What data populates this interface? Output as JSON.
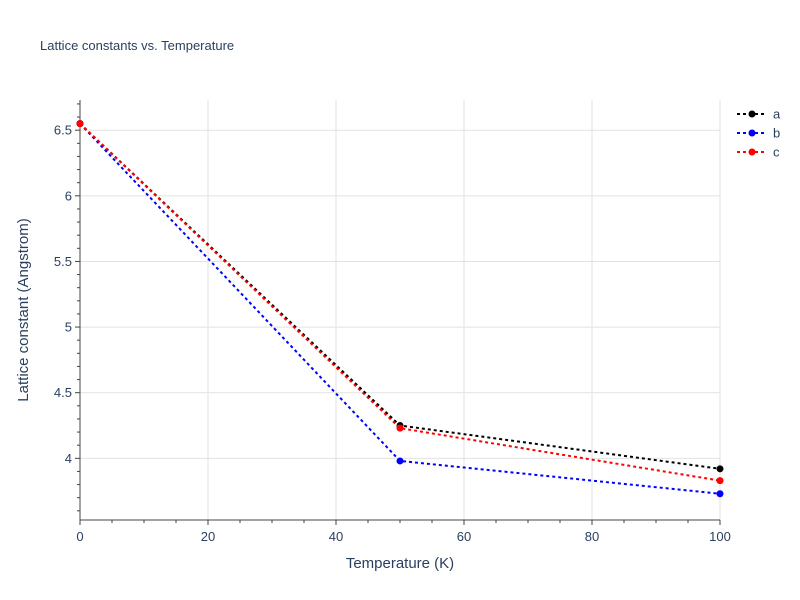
{
  "chart_data": {
    "type": "line",
    "title": "Lattice constants vs. Temperature",
    "xlabel": "Temperature (K)",
    "ylabel": "Lattice constant (Angstrom)",
    "xlim": [
      0,
      100
    ],
    "ylim": [
      3.53,
      6.73
    ],
    "x_ticks": [
      0,
      20,
      40,
      60,
      80,
      100
    ],
    "x_tick_labels": [
      "0",
      "20",
      "40",
      "60",
      "80",
      "100"
    ],
    "x_minor_ticks": [
      5,
      10,
      15,
      25,
      30,
      35,
      45,
      50,
      55,
      65,
      70,
      75,
      85,
      90,
      95
    ],
    "y_ticks": [
      4,
      4.5,
      5,
      5.5,
      6,
      6.5
    ],
    "y_tick_labels": [
      "4",
      "4.5",
      "5",
      "5.5",
      "6",
      "6.5"
    ],
    "y_minor_ticks": [
      3.6,
      3.7,
      3.8,
      3.9,
      4.1,
      4.2,
      4.3,
      4.4,
      4.6,
      4.7,
      4.8,
      4.9,
      5.1,
      5.2,
      5.3,
      5.4,
      5.6,
      5.7,
      5.8,
      5.9,
      6.1,
      6.2,
      6.3,
      6.4,
      6.6,
      6.7
    ],
    "grid": true,
    "legend_position": "top-right",
    "x": [
      0,
      50,
      100
    ],
    "series": [
      {
        "name": "a",
        "color": "#000000",
        "values": [
          6.55,
          4.25,
          3.92
        ]
      },
      {
        "name": "b",
        "color": "#0000ff",
        "values": [
          6.55,
          3.98,
          3.73
        ]
      },
      {
        "name": "c",
        "color": "#ff0000",
        "values": [
          6.55,
          4.23,
          3.83
        ]
      }
    ]
  }
}
